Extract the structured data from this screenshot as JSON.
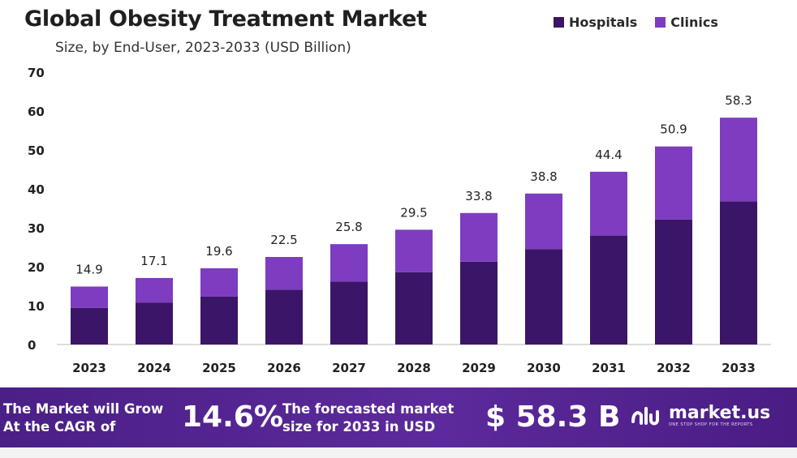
{
  "header": {
    "title": "Global Obesity Treatment Market",
    "subtitle": "Size, by End-User, 2023-2033 (USD Billion)"
  },
  "legend": [
    {
      "label": "Hospitals",
      "color": "#3b1568"
    },
    {
      "label": "Clinics",
      "color": "#7e3cc0"
    }
  ],
  "chart_data": {
    "type": "bar",
    "stacked": true,
    "categories": [
      "2023",
      "2024",
      "2025",
      "2026",
      "2027",
      "2028",
      "2029",
      "2030",
      "2031",
      "2032",
      "2033"
    ],
    "series": [
      {
        "name": "Hospitals",
        "color": "#3b1568",
        "values": [
          9.4,
          10.8,
          12.3,
          14.1,
          16.2,
          18.6,
          21.3,
          24.5,
          28.0,
          32.1,
          36.8
        ]
      },
      {
        "name": "Clinics",
        "color": "#7e3cc0",
        "values": [
          5.5,
          6.3,
          7.3,
          8.4,
          9.6,
          10.9,
          12.5,
          14.3,
          16.4,
          18.8,
          21.5
        ]
      }
    ],
    "totals": [
      "14.9",
      "17.1",
      "19.6",
      "22.5",
      "25.8",
      "29.5",
      "33.8",
      "38.8",
      "44.4",
      "50.9",
      "58.3"
    ],
    "yticks": [
      "0",
      "10",
      "20",
      "30",
      "40",
      "50",
      "60",
      "70"
    ],
    "ylim": [
      0,
      70
    ],
    "legend_position": "top-right",
    "grid": false
  },
  "footer": {
    "cagr_text_line1": "The Market will Grow",
    "cagr_text_line2": "At the CAGR of",
    "cagr_value": "14.6%",
    "forecast_text_line1": "The forecasted market",
    "forecast_text_line2": "size for 2033 in USD",
    "forecast_value": "$ 58.3 B",
    "brand_name": "market.us",
    "brand_tagline": "ONE STOP SHOP FOR THE REPORTS"
  }
}
